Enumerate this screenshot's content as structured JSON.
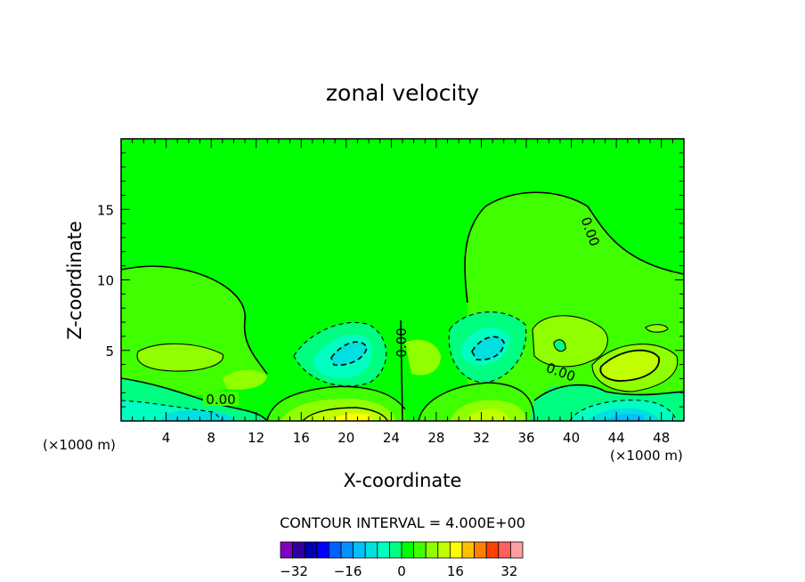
{
  "chart_data": {
    "type": "heatmap",
    "title": "zonal velocity",
    "xlabel": "X-coordinate",
    "ylabel": "Z-coordinate",
    "x_unit": "(×1000 m)",
    "xlim": [
      0,
      50
    ],
    "ylim": [
      0,
      20
    ],
    "x_ticks": [
      4,
      8,
      12,
      16,
      20,
      24,
      28,
      32,
      36,
      40,
      44,
      48
    ],
    "y_ticks": [
      5,
      10,
      15
    ],
    "contour_interval_text": "CONTOUR INTERVAL = 4.000E+00",
    "contour_labels": [
      "0.00",
      "0.00",
      "0.00",
      "0.00"
    ],
    "colorbar": {
      "min": -36,
      "max": 36,
      "step": 4,
      "tick_values": [
        -32,
        -16,
        0,
        16,
        32
      ],
      "tick_labels": [
        "−32",
        "−16",
        "0",
        "16",
        "32"
      ],
      "colors": [
        "#8000c0",
        "#3000a0",
        "#0000b0",
        "#0000ff",
        "#0060ff",
        "#0090ff",
        "#00c0ff",
        "#00e0e0",
        "#00ffc0",
        "#00ff80",
        "#00ff00",
        "#40ff00",
        "#90ff00",
        "#c0ff00",
        "#ffff00",
        "#ffc000",
        "#ff8000",
        "#ff4000",
        "#ff6060",
        "#ffa0a0"
      ]
    }
  }
}
